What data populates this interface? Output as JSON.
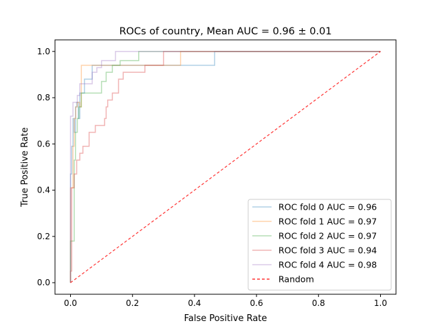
{
  "chart_data": {
    "type": "line",
    "title": "ROCs of country, Mean AUC = 0.96 ± 0.01",
    "xlabel": "False Positive Rate",
    "ylabel": "True Positive Rate",
    "xlim": [
      -0.05,
      1.05
    ],
    "ylim": [
      -0.05,
      1.05
    ],
    "xticks": [
      "0.0",
      "0.2",
      "0.4",
      "0.6",
      "0.8",
      "1.0"
    ],
    "yticks": [
      "0.0",
      "0.2",
      "0.4",
      "0.6",
      "0.8",
      "1.0"
    ],
    "grid": false,
    "legend_position": "lower-right",
    "series": [
      {
        "name": "ROC fold 0 AUC = 0.96",
        "color": "#1f77b4",
        "points": [
          [
            0,
            0
          ],
          [
            0,
            0.47
          ],
          [
            0.004,
            0.47
          ],
          [
            0.004,
            0.59
          ],
          [
            0.008,
            0.59
          ],
          [
            0.008,
            0.71
          ],
          [
            0.012,
            0.71
          ],
          [
            0.012,
            0.65
          ],
          [
            0.016,
            0.65
          ],
          [
            0.016,
            0.76
          ],
          [
            0.02,
            0.76
          ],
          [
            0.02,
            0.78
          ],
          [
            0.025,
            0.78
          ],
          [
            0.025,
            0.71
          ],
          [
            0.03,
            0.71
          ],
          [
            0.03,
            0.82
          ],
          [
            0.045,
            0.82
          ],
          [
            0.045,
            0.88
          ],
          [
            0.07,
            0.88
          ],
          [
            0.07,
            0.94
          ],
          [
            0.2,
            0.94
          ],
          [
            0.2,
            0.94
          ],
          [
            0.465,
            0.94
          ],
          [
            0.465,
            1.0
          ],
          [
            1.0,
            1.0
          ]
        ]
      },
      {
        "name": "ROC fold 1 AUC = 0.97",
        "color": "#ff7f0e",
        "points": [
          [
            0,
            0
          ],
          [
            0,
            0.41
          ],
          [
            0.008,
            0.41
          ],
          [
            0.008,
            0.59
          ],
          [
            0.012,
            0.59
          ],
          [
            0.012,
            0.71
          ],
          [
            0.017,
            0.71
          ],
          [
            0.017,
            0.76
          ],
          [
            0.022,
            0.76
          ],
          [
            0.022,
            0.78
          ],
          [
            0.03,
            0.78
          ],
          [
            0.03,
            0.76
          ],
          [
            0.035,
            0.76
          ],
          [
            0.035,
            0.94
          ],
          [
            0.355,
            0.94
          ],
          [
            0.355,
            1.0
          ],
          [
            1.0,
            1.0
          ]
        ]
      },
      {
        "name": "ROC fold 2 AUC = 0.97",
        "color": "#2ca02c",
        "points": [
          [
            0,
            0
          ],
          [
            0,
            0.18
          ],
          [
            0.012,
            0.18
          ],
          [
            0.012,
            0.53
          ],
          [
            0.016,
            0.53
          ],
          [
            0.016,
            0.65
          ],
          [
            0.022,
            0.65
          ],
          [
            0.022,
            0.71
          ],
          [
            0.027,
            0.71
          ],
          [
            0.027,
            0.76
          ],
          [
            0.035,
            0.76
          ],
          [
            0.035,
            0.82
          ],
          [
            0.04,
            0.82
          ],
          [
            0.04,
            0.82
          ],
          [
            0.1,
            0.82
          ],
          [
            0.1,
            0.87
          ],
          [
            0.115,
            0.87
          ],
          [
            0.115,
            0.91
          ],
          [
            0.135,
            0.91
          ],
          [
            0.135,
            0.94
          ],
          [
            0.16,
            0.94
          ],
          [
            0.16,
            0.96
          ],
          [
            0.22,
            0.96
          ],
          [
            0.22,
            1.0
          ],
          [
            1.0,
            1.0
          ]
        ]
      },
      {
        "name": "ROC fold 3 AUC = 0.94",
        "color": "#d62728",
        "points": [
          [
            0,
            0
          ],
          [
            0,
            0.05
          ],
          [
            0.004,
            0.05
          ],
          [
            0.004,
            0.41
          ],
          [
            0.012,
            0.41
          ],
          [
            0.012,
            0.47
          ],
          [
            0.02,
            0.47
          ],
          [
            0.02,
            0.53
          ],
          [
            0.03,
            0.53
          ],
          [
            0.03,
            0.56
          ],
          [
            0.04,
            0.56
          ],
          [
            0.04,
            0.59
          ],
          [
            0.06,
            0.59
          ],
          [
            0.06,
            0.65
          ],
          [
            0.08,
            0.65
          ],
          [
            0.08,
            0.68
          ],
          [
            0.11,
            0.68
          ],
          [
            0.11,
            0.71
          ],
          [
            0.115,
            0.71
          ],
          [
            0.115,
            0.76
          ],
          [
            0.12,
            0.76
          ],
          [
            0.12,
            0.79
          ],
          [
            0.135,
            0.79
          ],
          [
            0.135,
            0.82
          ],
          [
            0.155,
            0.82
          ],
          [
            0.155,
            0.88
          ],
          [
            0.17,
            0.88
          ],
          [
            0.17,
            0.91
          ],
          [
            0.24,
            0.91
          ],
          [
            0.24,
            0.94
          ],
          [
            0.3,
            0.94
          ],
          [
            0.3,
            1.0
          ],
          [
            1.0,
            1.0
          ]
        ]
      },
      {
        "name": "ROC fold 4 AUC = 0.98",
        "color": "#9467bd",
        "points": [
          [
            0,
            0
          ],
          [
            0,
            0.72
          ],
          [
            0.008,
            0.72
          ],
          [
            0.008,
            0.78
          ],
          [
            0.022,
            0.78
          ],
          [
            0.022,
            0.81
          ],
          [
            0.03,
            0.81
          ],
          [
            0.03,
            0.86
          ],
          [
            0.045,
            0.86
          ],
          [
            0.045,
            0.86
          ],
          [
            0.07,
            0.86
          ],
          [
            0.07,
            0.91
          ],
          [
            0.085,
            0.91
          ],
          [
            0.085,
            0.93
          ],
          [
            0.1,
            0.93
          ],
          [
            0.1,
            0.96
          ],
          [
            0.145,
            0.96
          ],
          [
            0.145,
            1.0
          ],
          [
            1.0,
            1.0
          ]
        ]
      }
    ],
    "reference_line": {
      "name": "Random",
      "color": "#ff0000",
      "style": "dashed",
      "points": [
        [
          0,
          0
        ],
        [
          1,
          1
        ]
      ]
    }
  }
}
